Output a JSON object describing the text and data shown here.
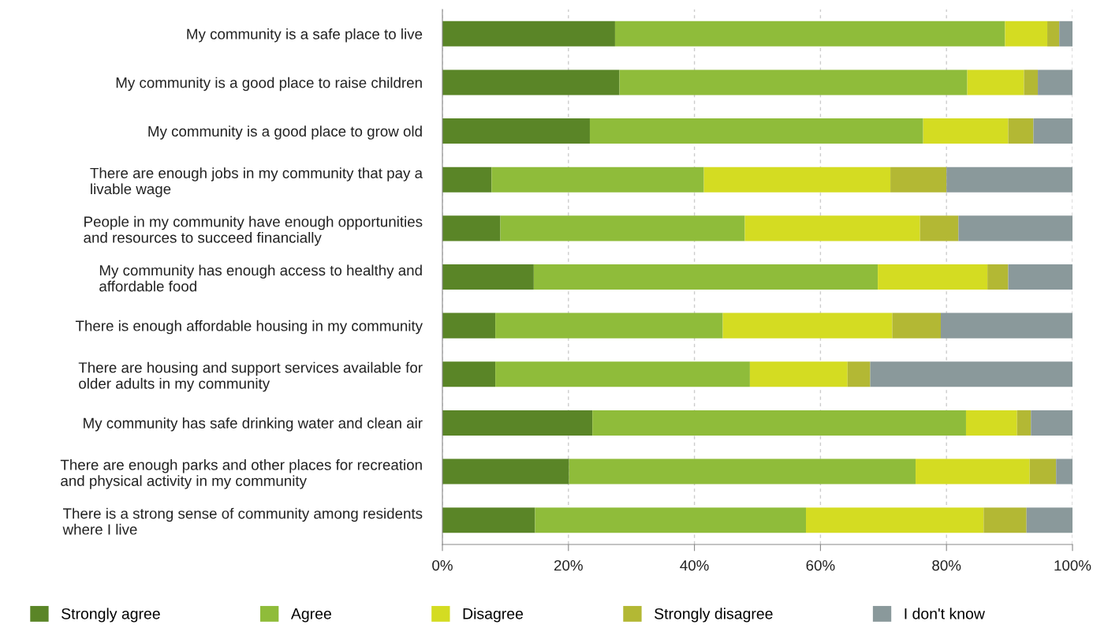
{
  "chart_data": {
    "type": "bar",
    "orientation": "horizontal",
    "stacked": true,
    "categories": [
      "My community is a safe place to live",
      "My community is a good place to raise children",
      "My community is a good place to grow old",
      "There are enough jobs in my community that pay a\nlivable wage",
      "People in my community have enough opportunities\nand resources to succeed financially",
      "My community has enough access to healthy and\naffordable food",
      "There is enough affordable housing in my community",
      "There are housing and support services available for\nolder adults in my community",
      "My community has safe drinking water and clean air",
      "There are enough parks and other places for recreation\nand physical activity in my community",
      "There is a strong sense of community among residents\nwhere I live"
    ],
    "series": [
      {
        "name": "Strongly agree",
        "color": "#5a8527",
        "values": [
          27.4,
          28.1,
          23.4,
          7.8,
          9.2,
          14.5,
          8.4,
          8.4,
          23.8,
          20.1,
          14.7
        ]
      },
      {
        "name": "Agree",
        "color": "#8fbc3a",
        "values": [
          61.9,
          55.2,
          52.9,
          33.7,
          38.8,
          54.6,
          36.1,
          40.4,
          59.3,
          55.0,
          43.0
        ]
      },
      {
        "name": "Disagree",
        "color": "#d4dc22",
        "values": [
          6.7,
          9.0,
          13.5,
          29.6,
          27.8,
          17.4,
          26.9,
          15.5,
          8.1,
          18.1,
          28.2
        ]
      },
      {
        "name": "Strongly disagree",
        "color": "#b3b834",
        "values": [
          1.9,
          2.2,
          4.0,
          8.9,
          6.1,
          3.3,
          7.7,
          3.6,
          2.2,
          4.2,
          6.8
        ]
      },
      {
        "name": "I don't know",
        "color": "#8a999b",
        "values": [
          2.1,
          5.5,
          6.2,
          20.0,
          18.1,
          10.2,
          20.9,
          32.1,
          6.6,
          2.6,
          7.3
        ]
      }
    ],
    "xlim": [
      0,
      100
    ],
    "xticks": [
      {
        "value": 0,
        "label": "0%"
      },
      {
        "value": 20,
        "label": "20%"
      },
      {
        "value": 40,
        "label": "40%"
      },
      {
        "value": 60,
        "label": "60%"
      },
      {
        "value": 80,
        "label": "80%"
      },
      {
        "value": 100,
        "label": "100%"
      }
    ],
    "grid": "x",
    "legend": "bottom"
  }
}
